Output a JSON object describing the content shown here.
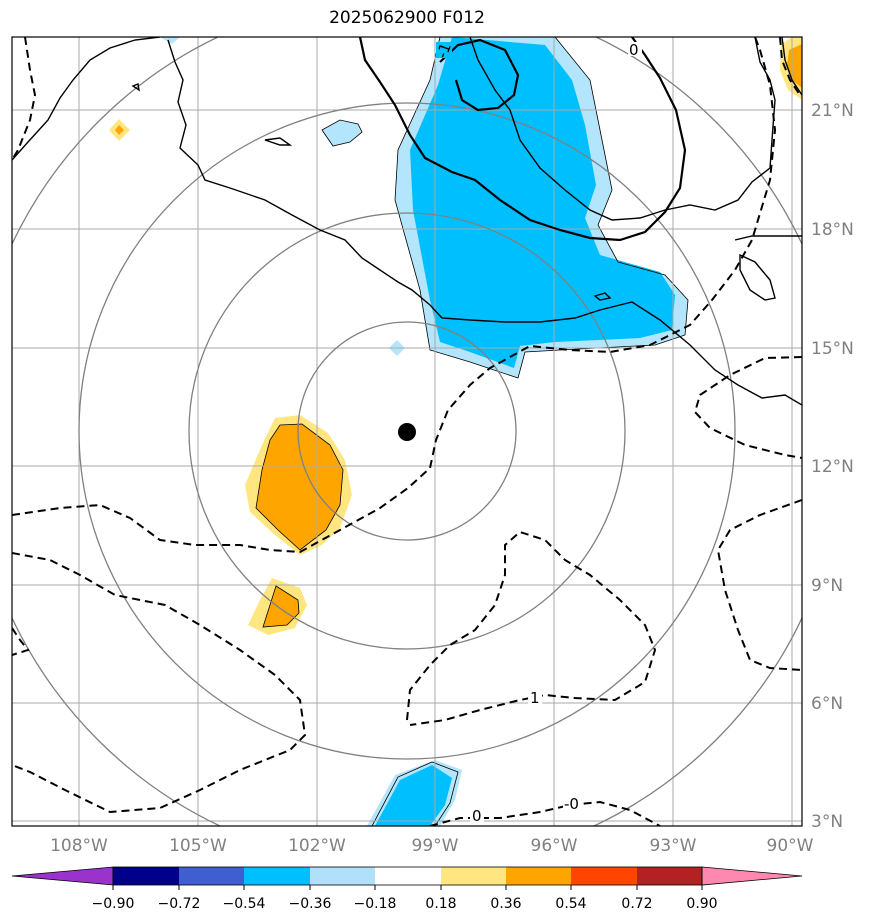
{
  "title": "2025062900 F012",
  "axes": {
    "lon_labels": [
      "108°W",
      "105°W",
      "102°W",
      "99°W",
      "96°W",
      "93°W",
      "90°W"
    ],
    "lat_labels": [
      "21°N",
      "18°N",
      "15°N",
      "12°N",
      "9°N",
      "6°N",
      "3°N"
    ],
    "label_color": "#808080"
  },
  "contour_labels": [
    "0",
    "-1",
    "1",
    "0",
    "-0"
  ],
  "colorbar": {
    "ticks": [
      "−0.90",
      "−0.72",
      "−0.54",
      "−0.36",
      "−0.18",
      "0.18",
      "0.36",
      "0.54",
      "0.72",
      "0.90"
    ],
    "colors": [
      "#9933cc",
      "#00008b",
      "#3f5fd1",
      "#00bfff",
      "#b0e0fa",
      "#ffffff",
      "#ffe680",
      "#ffa500",
      "#ff4500",
      "#b22222",
      "#ff88b0"
    ]
  },
  "map": {
    "storm_marker": "center-dot",
    "range_rings": 4,
    "colors": {
      "cyan": "#00bfff",
      "lightblue": "#b3e5fc",
      "orange": "#ffa500",
      "yellow": "#ffe680",
      "grid": "#aaaaaa",
      "ring": "#808080"
    }
  }
}
